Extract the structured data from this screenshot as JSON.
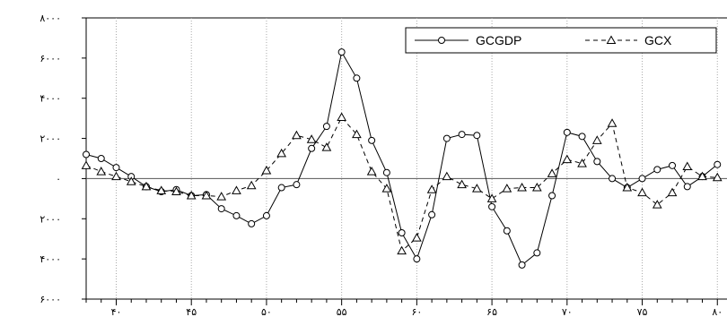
{
  "chart_data": {
    "type": "line",
    "title": "",
    "xlabel": "",
    "ylabel": "",
    "xlim": [
      38,
      81
    ],
    "ylim": [
      -6000,
      8000
    ],
    "x_ticks": [
      40,
      45,
      50,
      55,
      60,
      65,
      70,
      75,
      80
    ],
    "x_tick_labels": [
      "۴۰",
      "۴۵",
      "۵۰",
      "۵۵",
      "۶۰",
      "۶۵",
      "۷۰",
      "۷۵",
      "۸۰"
    ],
    "y_ticks": [
      -6000,
      -4000,
      -2000,
      0,
      2000,
      4000,
      6000,
      8000
    ],
    "y_tick_labels": [
      "۶۰۰۰",
      "۴۰۰۰",
      "۲۰۰۰",
      "۰",
      "۲۰۰۰",
      "۴۰۰۰",
      "۶۰۰۰",
      "۸۰۰۰"
    ],
    "vertical_gridlines": true,
    "horizontal_gridlines": false,
    "zero_line": true,
    "legend_position": "top-right",
    "x": [
      38,
      39,
      40,
      41,
      42,
      43,
      44,
      45,
      46,
      47,
      48,
      49,
      50,
      51,
      52,
      53,
      54,
      55,
      56,
      57,
      58,
      59,
      60,
      61,
      62,
      63,
      64,
      65,
      66,
      67,
      68,
      69,
      70,
      71,
      72,
      73,
      74,
      75,
      76,
      77,
      78,
      79,
      80
    ],
    "series": [
      {
        "name": "GCGDP",
        "line_style": "solid",
        "marker": "circle",
        "values": [
          1200,
          1000,
          550,
          100,
          -400,
          -650,
          -550,
          -850,
          -800,
          -1500,
          -1850,
          -2250,
          -1850,
          -450,
          -300,
          1500,
          2600,
          6300,
          5000,
          1900,
          300,
          -2700,
          -4000,
          -1800,
          2000,
          2200,
          2150,
          -1400,
          -2600,
          -4300,
          -3700,
          -850,
          2300,
          2100,
          850,
          0,
          -450,
          0,
          450,
          650,
          -400,
          100,
          700
        ]
      },
      {
        "name": "GCX",
        "line_style": "dashed",
        "marker": "triangle",
        "values": [
          650,
          350,
          100,
          -150,
          -400,
          -600,
          -650,
          -850,
          -850,
          -900,
          -600,
          -350,
          400,
          1250,
          2150,
          1950,
          1550,
          3050,
          2200,
          350,
          -500,
          -3600,
          -2950,
          -550,
          100,
          -300,
          -500,
          -1000,
          -500,
          -450,
          -450,
          250,
          950,
          750,
          1900,
          2750,
          -450,
          -700,
          -1300,
          -700,
          600,
          100,
          50
        ]
      }
    ]
  }
}
